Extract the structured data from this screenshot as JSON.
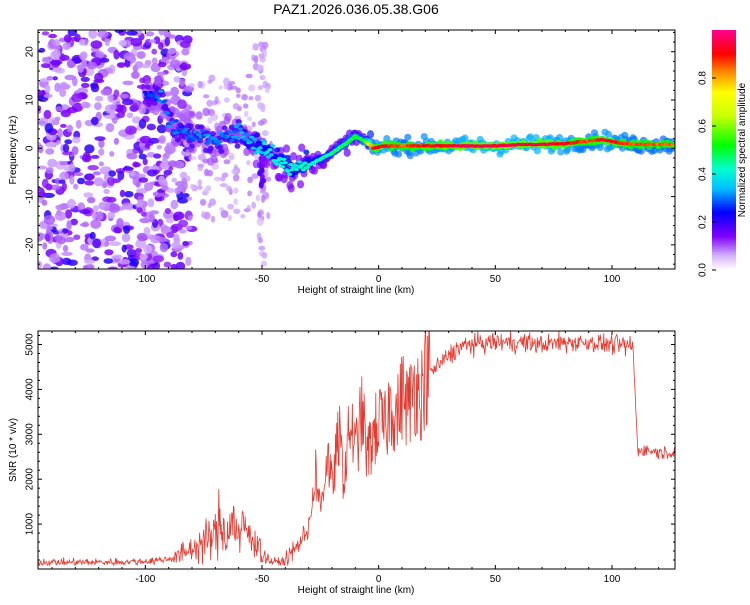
{
  "title": "PAZ1.2026.036.05.38.G06",
  "chart_data": [
    {
      "type": "heatmap",
      "title": "PAZ1.2026.036.05.38.G06",
      "xlabel": "Height of straight line (km)",
      "ylabel": "Frequency (Hz)",
      "xlim": [
        -146,
        127
      ],
      "ylim": [
        -25,
        24.5
      ],
      "xticks": [
        -100,
        -50,
        0,
        50,
        100
      ],
      "xtick_labels": [
        "-100",
        "-50",
        "0",
        "50",
        "100"
      ],
      "yticks": [
        -20,
        -10,
        0,
        10,
        20
      ],
      "ytick_labels": [
        "-20",
        "-10",
        "0",
        "10",
        "20"
      ],
      "colorbar": {
        "label": "Normalized spectral amplitude",
        "range": [
          0,
          1
        ],
        "ticks": [
          0.0,
          0.2,
          0.4,
          0.6,
          0.8
        ],
        "tick_labels": [
          "0.0",
          "0.2",
          "0.4",
          "0.6",
          "0.8"
        ]
      },
      "ridge": {
        "x": [
          -98,
          -93,
          -88,
          -84,
          -78,
          -72,
          -66,
          -60,
          -55,
          -50,
          -45,
          -40,
          -36,
          -32,
          -26,
          -20,
          -14,
          -10,
          -6,
          -2,
          2,
          10,
          20,
          30,
          40,
          50,
          60,
          70,
          80,
          90,
          96,
          102,
          110,
          127
        ],
        "freq": [
          11,
          10.5,
          4,
          3.5,
          2.5,
          1.5,
          2.5,
          3.5,
          1,
          0,
          -1.5,
          -3,
          -4.5,
          -4,
          -2.5,
          -1,
          1,
          2.5,
          1.5,
          0,
          0.5,
          0.5,
          0.5,
          0.5,
          0.5,
          0.5,
          0.8,
          0.8,
          1,
          1.5,
          1.8,
          1.2,
          0.8,
          0.8
        ],
        "amplitude": [
          0.25,
          0.3,
          0.3,
          0.28,
          0.3,
          0.3,
          0.3,
          0.32,
          0.35,
          0.38,
          0.4,
          0.42,
          0.4,
          0.42,
          0.42,
          0.45,
          0.48,
          0.5,
          0.5,
          0.9,
          0.92,
          0.85,
          0.9,
          0.92,
          0.95,
          0.95,
          0.95,
          0.95,
          0.92,
          0.85,
          0.92,
          0.9,
          0.85,
          0.85
        ]
      }
    },
    {
      "type": "line",
      "xlabel": "Height of straight line (km)",
      "ylabel": "SNR (10 * v/v)",
      "xlim": [
        -146,
        127
      ],
      "ylim": [
        0,
        5300
      ],
      "xticks": [
        -100,
        -50,
        0,
        50,
        100
      ],
      "xtick_labels": [
        "-100",
        "-50",
        "0",
        "50",
        "100"
      ],
      "yticks": [
        1000,
        2000,
        3000,
        4000,
        5000
      ],
      "ytick_labels": [
        "1000",
        "2000",
        "3000",
        "4000",
        "5000"
      ],
      "series": [
        {
          "name": "SNR",
          "color": "#e8392f",
          "x": [
            -146,
            -120,
            -100,
            -90,
            -85,
            -80,
            -75,
            -70,
            -68,
            -65,
            -62,
            -60,
            -57,
            -55,
            -52,
            -50,
            -45,
            -40,
            -35,
            -30,
            -27,
            -25,
            -22,
            -20,
            -17,
            -15,
            -12,
            -10,
            -7,
            -5,
            -2,
            0,
            3,
            5,
            8,
            10,
            13,
            15,
            18,
            20,
            25,
            30,
            35,
            40,
            50,
            60,
            70,
            80,
            90,
            100,
            109,
            111,
            115,
            120,
            127
          ],
          "y": [
            150,
            150,
            170,
            220,
            320,
            450,
            600,
            750,
            1100,
            700,
            1200,
            650,
            1000,
            600,
            700,
            300,
            150,
            180,
            500,
            900,
            2200,
            1300,
            2600,
            1800,
            3000,
            2000,
            3300,
            2600,
            3500,
            2500,
            3000,
            3300,
            3100,
            3700,
            3400,
            3900,
            3600,
            4100,
            3900,
            4300,
            4500,
            4750,
            4950,
            5000,
            5050,
            5050,
            5000,
            5050,
            5050,
            5000,
            4950,
            2650,
            2650,
            2600,
            2600
          ]
        }
      ]
    }
  ]
}
